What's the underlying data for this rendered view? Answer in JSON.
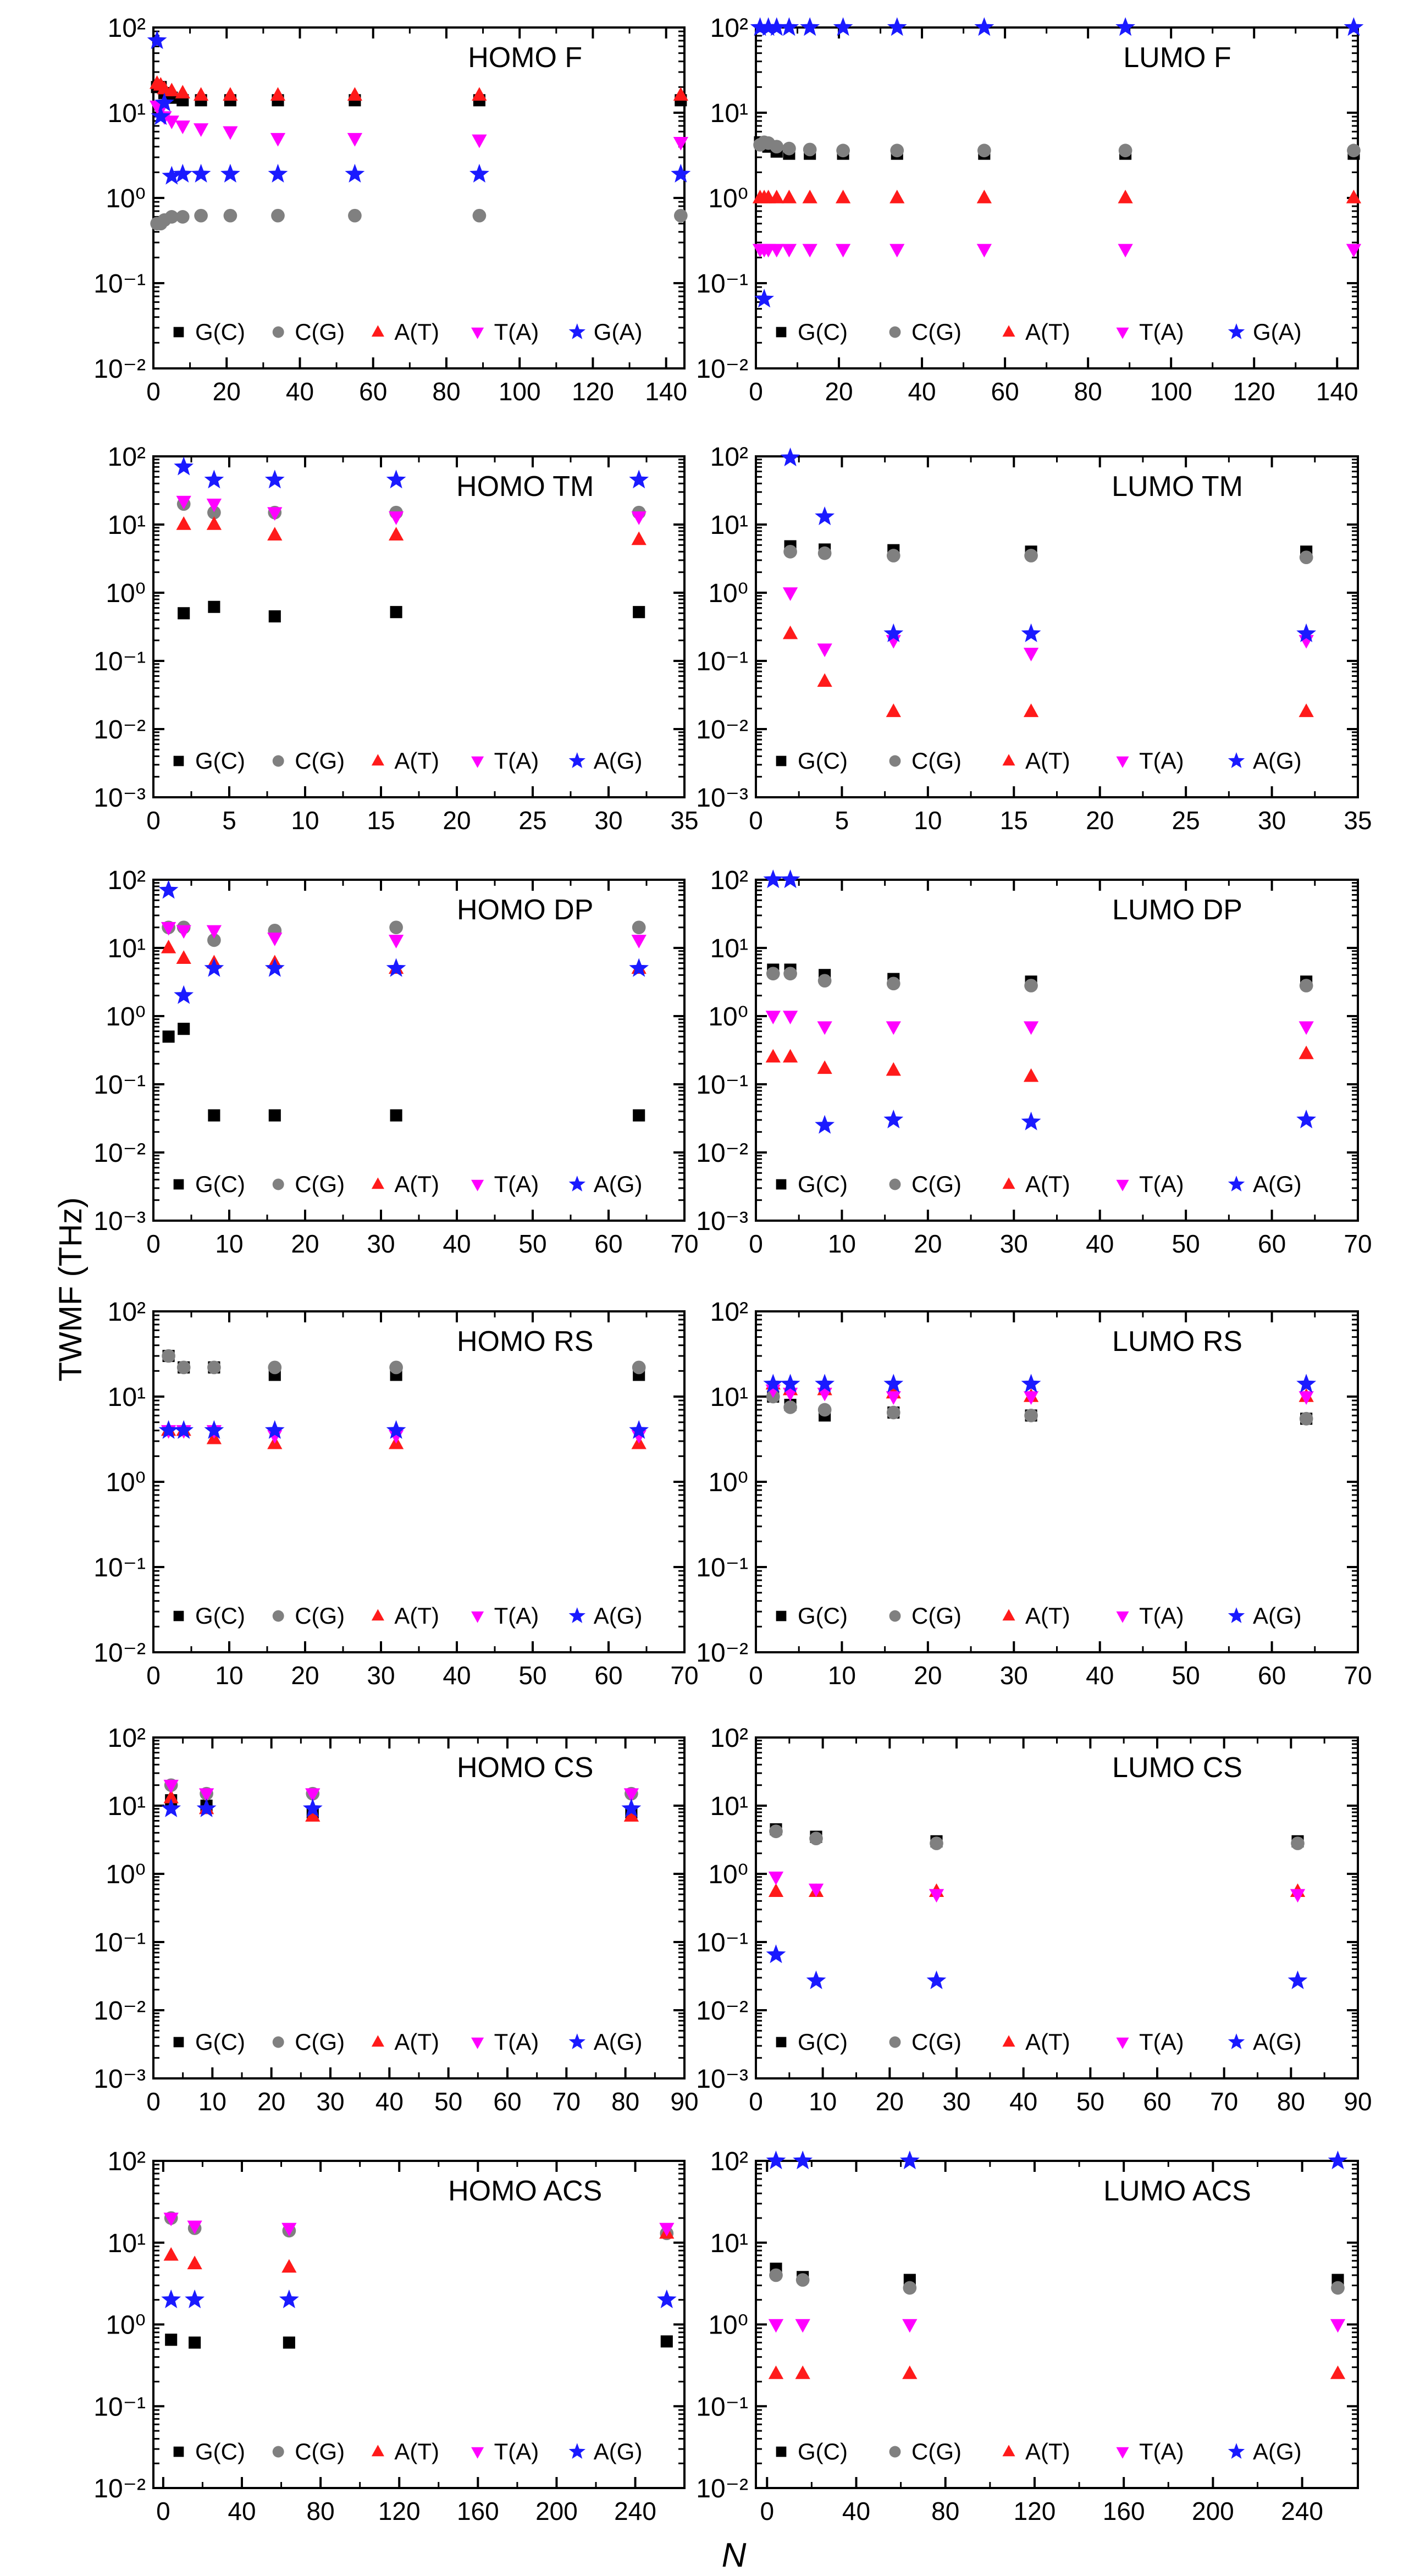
{
  "figure": {
    "ylabel": "TWMF (THz)",
    "xlabel": "N",
    "styles": {
      "G(C)": {
        "color": "#000000",
        "marker": "square"
      },
      "C(G)": {
        "color": "#808080",
        "marker": "circle"
      },
      "A(T)": {
        "color": "#ff1a1a",
        "marker": "triangle-up"
      },
      "T(A)": {
        "color": "#ff00ff",
        "marker": "triangle-down"
      },
      "G(A)": {
        "color": "#1a1aff",
        "marker": "star"
      },
      "A(G)": {
        "color": "#1a1aff",
        "marker": "star"
      }
    }
  },
  "chart_data": [
    {
      "type": "scatter",
      "title": "HOMO F",
      "yscale": "log",
      "xlim": [
        0,
        145
      ],
      "xticks": [
        0,
        20,
        40,
        60,
        80,
        100,
        120,
        140
      ],
      "yexp": [
        -2,
        2
      ],
      "ytick_labels": [
        "10⁻²",
        "10⁻¹",
        "10⁰",
        "10¹",
        "10²"
      ],
      "x": [
        1,
        2,
        3,
        5,
        8,
        13,
        21,
        34,
        55,
        89,
        144
      ],
      "series": [
        {
          "name": "G(C)",
          "values": [
            20,
            20,
            17,
            15,
            14,
            14,
            14,
            14,
            14,
            14,
            14
          ]
        },
        {
          "name": "C(G)",
          "values": [
            0.5,
            0.5,
            0.55,
            0.6,
            0.6,
            0.62,
            0.62,
            0.62,
            0.62,
            0.62,
            0.62
          ]
        },
        {
          "name": "A(T)",
          "values": [
            22,
            21,
            19,
            18,
            17,
            16,
            16,
            16,
            16,
            16,
            16
          ]
        },
        {
          "name": "T(A)",
          "values": [
            12,
            11,
            9,
            8,
            7,
            6.5,
            6,
            5,
            5,
            4.8,
            4.5
          ]
        },
        {
          "name": "G(A)",
          "values": [
            70,
            9,
            13,
            1.8,
            1.9,
            1.9,
            1.9,
            1.9,
            1.9,
            1.9,
            1.9
          ]
        }
      ]
    },
    {
      "type": "scatter",
      "title": "LUMO F",
      "yscale": "log",
      "xlim": [
        0,
        145
      ],
      "xticks": [
        0,
        20,
        40,
        60,
        80,
        100,
        120,
        140
      ],
      "yexp": [
        -2,
        2
      ],
      "ytick_labels": [
        "10⁻²",
        "10⁻¹",
        "10⁰",
        "10¹",
        "10²"
      ],
      "x": [
        1,
        2,
        3,
        5,
        8,
        13,
        21,
        34,
        55,
        89,
        144
      ],
      "series": [
        {
          "name": "G(C)",
          "values": [
            4.5,
            4.2,
            4.0,
            3.5,
            3.3,
            3.3,
            3.3,
            3.3,
            3.3,
            3.3,
            3.3
          ]
        },
        {
          "name": "C(G)",
          "values": [
            4.2,
            4.5,
            4.4,
            4.0,
            3.8,
            3.7,
            3.6,
            3.6,
            3.6,
            3.6,
            3.6
          ]
        },
        {
          "name": "A(T)",
          "values": [
            1.0,
            1.0,
            1.0,
            1.0,
            1.0,
            1.0,
            1.0,
            1.0,
            1.0,
            1.0,
            1.0
          ]
        },
        {
          "name": "T(A)",
          "values": [
            0.25,
            0.25,
            0.25,
            0.25,
            0.25,
            0.25,
            0.25,
            0.25,
            0.25,
            0.25,
            0.25
          ]
        },
        {
          "name": "G(A)",
          "values": [
            100,
            0.065,
            100,
            100,
            100,
            100,
            100,
            100,
            100,
            100,
            100
          ]
        }
      ]
    },
    {
      "type": "scatter",
      "title": "HOMO TM",
      "yscale": "log",
      "xlim": [
        0,
        35
      ],
      "xticks": [
        0,
        5,
        10,
        15,
        20,
        25,
        30,
        35
      ],
      "yexp": [
        -3,
        2
      ],
      "ytick_labels": [
        "10⁻³",
        "10⁻²",
        "10⁻¹",
        "10⁰",
        "10¹",
        "10²"
      ],
      "x": [
        2,
        4,
        8,
        16,
        32
      ],
      "series": [
        {
          "name": "G(C)",
          "values": [
            0.5,
            0.62,
            0.45,
            0.52,
            0.52
          ]
        },
        {
          "name": "C(G)",
          "values": [
            20,
            15,
            15,
            15,
            15
          ]
        },
        {
          "name": "A(T)",
          "values": [
            10,
            10,
            7,
            7,
            6
          ]
        },
        {
          "name": "T(A)",
          "values": [
            22,
            20,
            15,
            13,
            13
          ]
        },
        {
          "name": "A(G)",
          "values": [
            70,
            45,
            45,
            45,
            45
          ]
        }
      ]
    },
    {
      "type": "scatter",
      "title": "LUMO TM",
      "yscale": "log",
      "xlim": [
        0,
        35
      ],
      "xticks": [
        0,
        5,
        10,
        15,
        20,
        25,
        30,
        35
      ],
      "yexp": [
        -3,
        2
      ],
      "ytick_labels": [
        "10⁻³",
        "10⁻²",
        "10⁻¹",
        "10⁰",
        "10¹",
        "10²"
      ],
      "x": [
        2,
        4,
        8,
        16,
        32
      ],
      "series": [
        {
          "name": "G(C)",
          "values": [
            4.8,
            4.3,
            4.2,
            4.0,
            4.0
          ]
        },
        {
          "name": "C(G)",
          "values": [
            4.0,
            3.8,
            3.5,
            3.5,
            3.3
          ]
        },
        {
          "name": "A(T)",
          "values": [
            0.25,
            0.05,
            0.018,
            0.018,
            0.018
          ]
        },
        {
          "name": "T(A)",
          "values": [
            1.0,
            0.15,
            0.2,
            0.13,
            0.2
          ]
        },
        {
          "name": "A(G)",
          "values": [
            95,
            13,
            0.25,
            0.25,
            0.25
          ]
        }
      ]
    },
    {
      "type": "scatter",
      "title": "HOMO DP",
      "yscale": "log",
      "xlim": [
        0,
        70
      ],
      "xticks": [
        0,
        10,
        20,
        30,
        40,
        50,
        60,
        70
      ],
      "yexp": [
        -3,
        2
      ],
      "ytick_labels": [
        "10⁻³",
        "10⁻²",
        "10⁻¹",
        "10⁰",
        "10¹",
        "10²"
      ],
      "x": [
        2,
        4,
        8,
        16,
        32,
        64
      ],
      "series": [
        {
          "name": "G(C)",
          "values": [
            0.5,
            0.65,
            0.035,
            0.035,
            0.035,
            0.035
          ]
        },
        {
          "name": "C(G)",
          "values": [
            20,
            20,
            13,
            18,
            20,
            20
          ]
        },
        {
          "name": "A(T)",
          "values": [
            10,
            7,
            6,
            6,
            5,
            5
          ]
        },
        {
          "name": "T(A)",
          "values": [
            20,
            18,
            18,
            14,
            13,
            13
          ]
        },
        {
          "name": "A(G)",
          "values": [
            70,
            2,
            5,
            5,
            5,
            5
          ]
        }
      ]
    },
    {
      "type": "scatter",
      "title": "LUMO DP",
      "yscale": "log",
      "xlim": [
        0,
        70
      ],
      "xticks": [
        0,
        10,
        20,
        30,
        40,
        50,
        60,
        70
      ],
      "yexp": [
        -3,
        2
      ],
      "ytick_labels": [
        "10⁻³",
        "10⁻²",
        "10⁻¹",
        "10⁰",
        "10¹",
        "10²"
      ],
      "x": [
        2,
        4,
        8,
        16,
        32,
        64
      ],
      "series": [
        {
          "name": "G(C)",
          "values": [
            4.8,
            4.8,
            4.0,
            3.5,
            3.2,
            3.2
          ]
        },
        {
          "name": "C(G)",
          "values": [
            4.2,
            4.2,
            3.3,
            3.0,
            2.8,
            2.8
          ]
        },
        {
          "name": "A(T)",
          "values": [
            0.25,
            0.25,
            0.17,
            0.16,
            0.13,
            0.28
          ]
        },
        {
          "name": "T(A)",
          "values": [
            1.0,
            1.0,
            0.7,
            0.7,
            0.7,
            0.7
          ]
        },
        {
          "name": "A(G)",
          "values": [
            100,
            100,
            0.025,
            0.03,
            0.028,
            0.03
          ]
        }
      ]
    },
    {
      "type": "scatter",
      "title": "HOMO RS",
      "yscale": "log",
      "xlim": [
        0,
        70
      ],
      "xticks": [
        0,
        10,
        20,
        30,
        40,
        50,
        60,
        70
      ],
      "yexp": [
        -2,
        2
      ],
      "ytick_labels": [
        "10⁻²",
        "10⁻¹",
        "10⁰",
        "10¹",
        "10²"
      ],
      "x": [
        2,
        4,
        8,
        16,
        32,
        64
      ],
      "series": [
        {
          "name": "G(C)",
          "values": [
            30,
            22,
            22,
            18,
            18,
            18
          ]
        },
        {
          "name": "C(G)",
          "values": [
            30,
            22,
            22,
            22,
            22,
            22
          ]
        },
        {
          "name": "A(T)",
          "values": [
            4,
            4,
            3.2,
            2.8,
            2.8,
            2.8
          ]
        },
        {
          "name": "T(A)",
          "values": [
            4,
            4,
            4,
            3.5,
            3.5,
            3.5
          ]
        },
        {
          "name": "A(G)",
          "values": [
            4,
            4,
            4,
            4,
            4,
            4
          ]
        }
      ]
    },
    {
      "type": "scatter",
      "title": "LUMO RS",
      "yscale": "log",
      "xlim": [
        0,
        70
      ],
      "xticks": [
        0,
        10,
        20,
        30,
        40,
        50,
        60,
        70
      ],
      "yexp": [
        -2,
        2
      ],
      "ytick_labels": [
        "10⁻²",
        "10⁻¹",
        "10⁰",
        "10¹",
        "10²"
      ],
      "x": [
        2,
        4,
        8,
        16,
        32,
        64
      ],
      "series": [
        {
          "name": "G(C)",
          "values": [
            10,
            8,
            6,
            6.5,
            6,
            5.5
          ]
        },
        {
          "name": "C(G)",
          "values": [
            10,
            7.5,
            7,
            6.5,
            6,
            5.5
          ]
        },
        {
          "name": "A(T)",
          "values": [
            14,
            12,
            12,
            11,
            10,
            10
          ]
        },
        {
          "name": "T(A)",
          "values": [
            12,
            11,
            11,
            10,
            10,
            10
          ]
        },
        {
          "name": "A(G)",
          "values": [
            14,
            14,
            14,
            14,
            14,
            14
          ]
        }
      ]
    },
    {
      "type": "scatter",
      "title": "HOMO CS",
      "yscale": "log",
      "xlim": [
        0,
        90
      ],
      "xticks": [
        0,
        10,
        20,
        30,
        40,
        50,
        60,
        70,
        80,
        90
      ],
      "yexp": [
        -3,
        2
      ],
      "ytick_labels": [
        "10⁻³",
        "10⁻²",
        "10⁻¹",
        "10⁰",
        "10¹",
        "10²"
      ],
      "x": [
        3,
        9,
        27,
        81
      ],
      "series": [
        {
          "name": "G(C)",
          "values": [
            12,
            10,
            8,
            8
          ]
        },
        {
          "name": "C(G)",
          "values": [
            20,
            15,
            15,
            15
          ]
        },
        {
          "name": "A(T)",
          "values": [
            13,
            9,
            7,
            7
          ]
        },
        {
          "name": "T(A)",
          "values": [
            20,
            15,
            15,
            15
          ]
        },
        {
          "name": "A(G)",
          "values": [
            9,
            9,
            9,
            9
          ]
        }
      ]
    },
    {
      "type": "scatter",
      "title": "LUMO CS",
      "yscale": "log",
      "xlim": [
        0,
        90
      ],
      "xticks": [
        0,
        10,
        20,
        30,
        40,
        50,
        60,
        70,
        80,
        90
      ],
      "yexp": [
        -3,
        2
      ],
      "ytick_labels": [
        "10⁻³",
        "10⁻²",
        "10⁻¹",
        "10⁰",
        "10¹",
        "10²"
      ],
      "x": [
        3,
        9,
        27,
        81
      ],
      "series": [
        {
          "name": "G(C)",
          "values": [
            4.5,
            3.5,
            3.0,
            3.0
          ]
        },
        {
          "name": "C(G)",
          "values": [
            4.2,
            3.3,
            2.8,
            2.8
          ]
        },
        {
          "name": "A(T)",
          "values": [
            0.55,
            0.55,
            0.55,
            0.55
          ]
        },
        {
          "name": "T(A)",
          "values": [
            0.9,
            0.6,
            0.5,
            0.5
          ]
        },
        {
          "name": "A(G)",
          "values": [
            0.065,
            0.027,
            0.027,
            0.027
          ]
        }
      ]
    },
    {
      "type": "scatter",
      "title": "HOMO ACS",
      "yscale": "log",
      "xlim": [
        -5,
        265
      ],
      "xticks": [
        0,
        40,
        80,
        120,
        160,
        200,
        240
      ],
      "yexp": [
        -2,
        2
      ],
      "ytick_labels": [
        "10⁻²",
        "10⁻¹",
        "10⁰",
        "10¹",
        "10²"
      ],
      "x": [
        4,
        16,
        64,
        256
      ],
      "series": [
        {
          "name": "G(C)",
          "values": [
            0.65,
            0.6,
            0.6,
            0.62
          ]
        },
        {
          "name": "C(G)",
          "values": [
            20,
            15,
            14,
            13
          ]
        },
        {
          "name": "A(T)",
          "values": [
            7,
            5.5,
            5,
            13
          ]
        },
        {
          "name": "T(A)",
          "values": [
            20,
            16,
            15,
            15
          ]
        },
        {
          "name": "A(G)",
          "values": [
            2,
            2,
            2,
            2
          ]
        }
      ]
    },
    {
      "type": "scatter",
      "title": "LUMO ACS",
      "yscale": "log",
      "xlim": [
        -5,
        265
      ],
      "xticks": [
        0,
        40,
        80,
        120,
        160,
        200,
        240
      ],
      "yexp": [
        -2,
        2
      ],
      "ytick_labels": [
        "10⁻²",
        "10⁻¹",
        "10⁰",
        "10¹",
        "10²"
      ],
      "x": [
        4,
        16,
        64,
        256
      ],
      "series": [
        {
          "name": "G(C)",
          "values": [
            4.8,
            3.8,
            3.5,
            3.5
          ]
        },
        {
          "name": "C(G)",
          "values": [
            4.0,
            3.5,
            2.8,
            2.8
          ]
        },
        {
          "name": "A(T)",
          "values": [
            0.25,
            0.25,
            0.25,
            0.25
          ]
        },
        {
          "name": "T(A)",
          "values": [
            1.0,
            1.0,
            1.0,
            1.0
          ]
        },
        {
          "name": "A(G)",
          "values": [
            100,
            100,
            100,
            100
          ]
        }
      ]
    }
  ]
}
